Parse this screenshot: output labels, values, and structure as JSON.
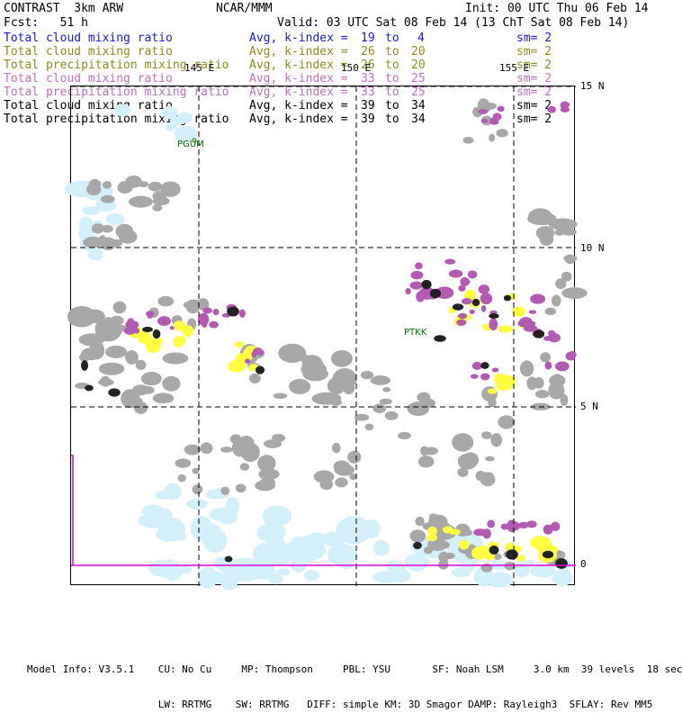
{
  "header": {
    "title_left": "CONTRAST  3km ARW",
    "center": "NCAR/MMM",
    "init": "Init: 00 UTC Thu 06 Feb 14",
    "fcst": "Fcst:   51 h",
    "valid": "Valid: 03 UTC Sat 08 Feb 14 (13 ChT Sat 08 Feb 14)"
  },
  "legend": [
    {
      "name": "Total cloud mixing ratio",
      "avg": "Avg, k-index =",
      "k1": "19",
      "to": "to",
      "k2": "4",
      "sm": "sm= 2",
      "color": "#1a1ad0"
    },
    {
      "name": "Total cloud mixing ratio",
      "avg": "Avg, k-index =",
      "k1": "26",
      "to": "to",
      "k2": "20",
      "sm": "sm= 2",
      "color": "#8f8a20"
    },
    {
      "name": "Total precipitation mixing ratio",
      "avg": "Avg, k-index =",
      "k1": "26",
      "to": "to",
      "k2": "20",
      "sm": "sm= 2",
      "color": "#8f8a20"
    },
    {
      "name": "Total cloud mixing ratio",
      "avg": "Avg, k-index =",
      "k1": "33",
      "to": "to",
      "k2": "25",
      "sm": "sm= 2",
      "color": "#c070c0"
    },
    {
      "name": "Total precipitation mixing ratio",
      "avg": "Avg, k-index =",
      "k1": "33",
      "to": "to",
      "k2": "25",
      "sm": "sm= 2",
      "color": "#c070c0"
    },
    {
      "name": "Total cloud mixing ratio",
      "avg": "Avg, k-index =",
      "k1": "39",
      "to": "to",
      "k2": "34",
      "sm": "sm= 2",
      "color": "#000000"
    },
    {
      "name": "Total precipitation mixing ratio",
      "avg": "Avg, k-index =",
      "k1": "39",
      "to": "to",
      "k2": "34",
      "sm": "sm= 2",
      "color": "#000000"
    }
  ],
  "map": {
    "lon_labels": [
      "145 E",
      "150 E",
      "155 E"
    ],
    "lat_labels": [
      "15 N",
      "10 N",
      "5 N",
      "0"
    ],
    "stations": [
      "PGUM",
      "PTKK"
    ],
    "colors": {
      "low_cloud": "#d4f0fa",
      "mid_cloud": "#a8a8a8",
      "precip_light": "#ffff40",
      "precip_mid": "#b35ab3",
      "core": "#222222",
      "station": "#007000",
      "boundary": "#e000e0"
    }
  },
  "footer": {
    "line1": "Model Info: V3.5.1    CU: No Cu     MP: Thompson     PBL: YSU       SF: Noah LSM     3.0 km  39 levels  18 sec",
    "line2": "                      LW: RRTMG    SW: RRTMG   DIFF: simple KM: 3D Smagor DAMP: Rayleigh3  SFLAY: Rev MM5"
  }
}
